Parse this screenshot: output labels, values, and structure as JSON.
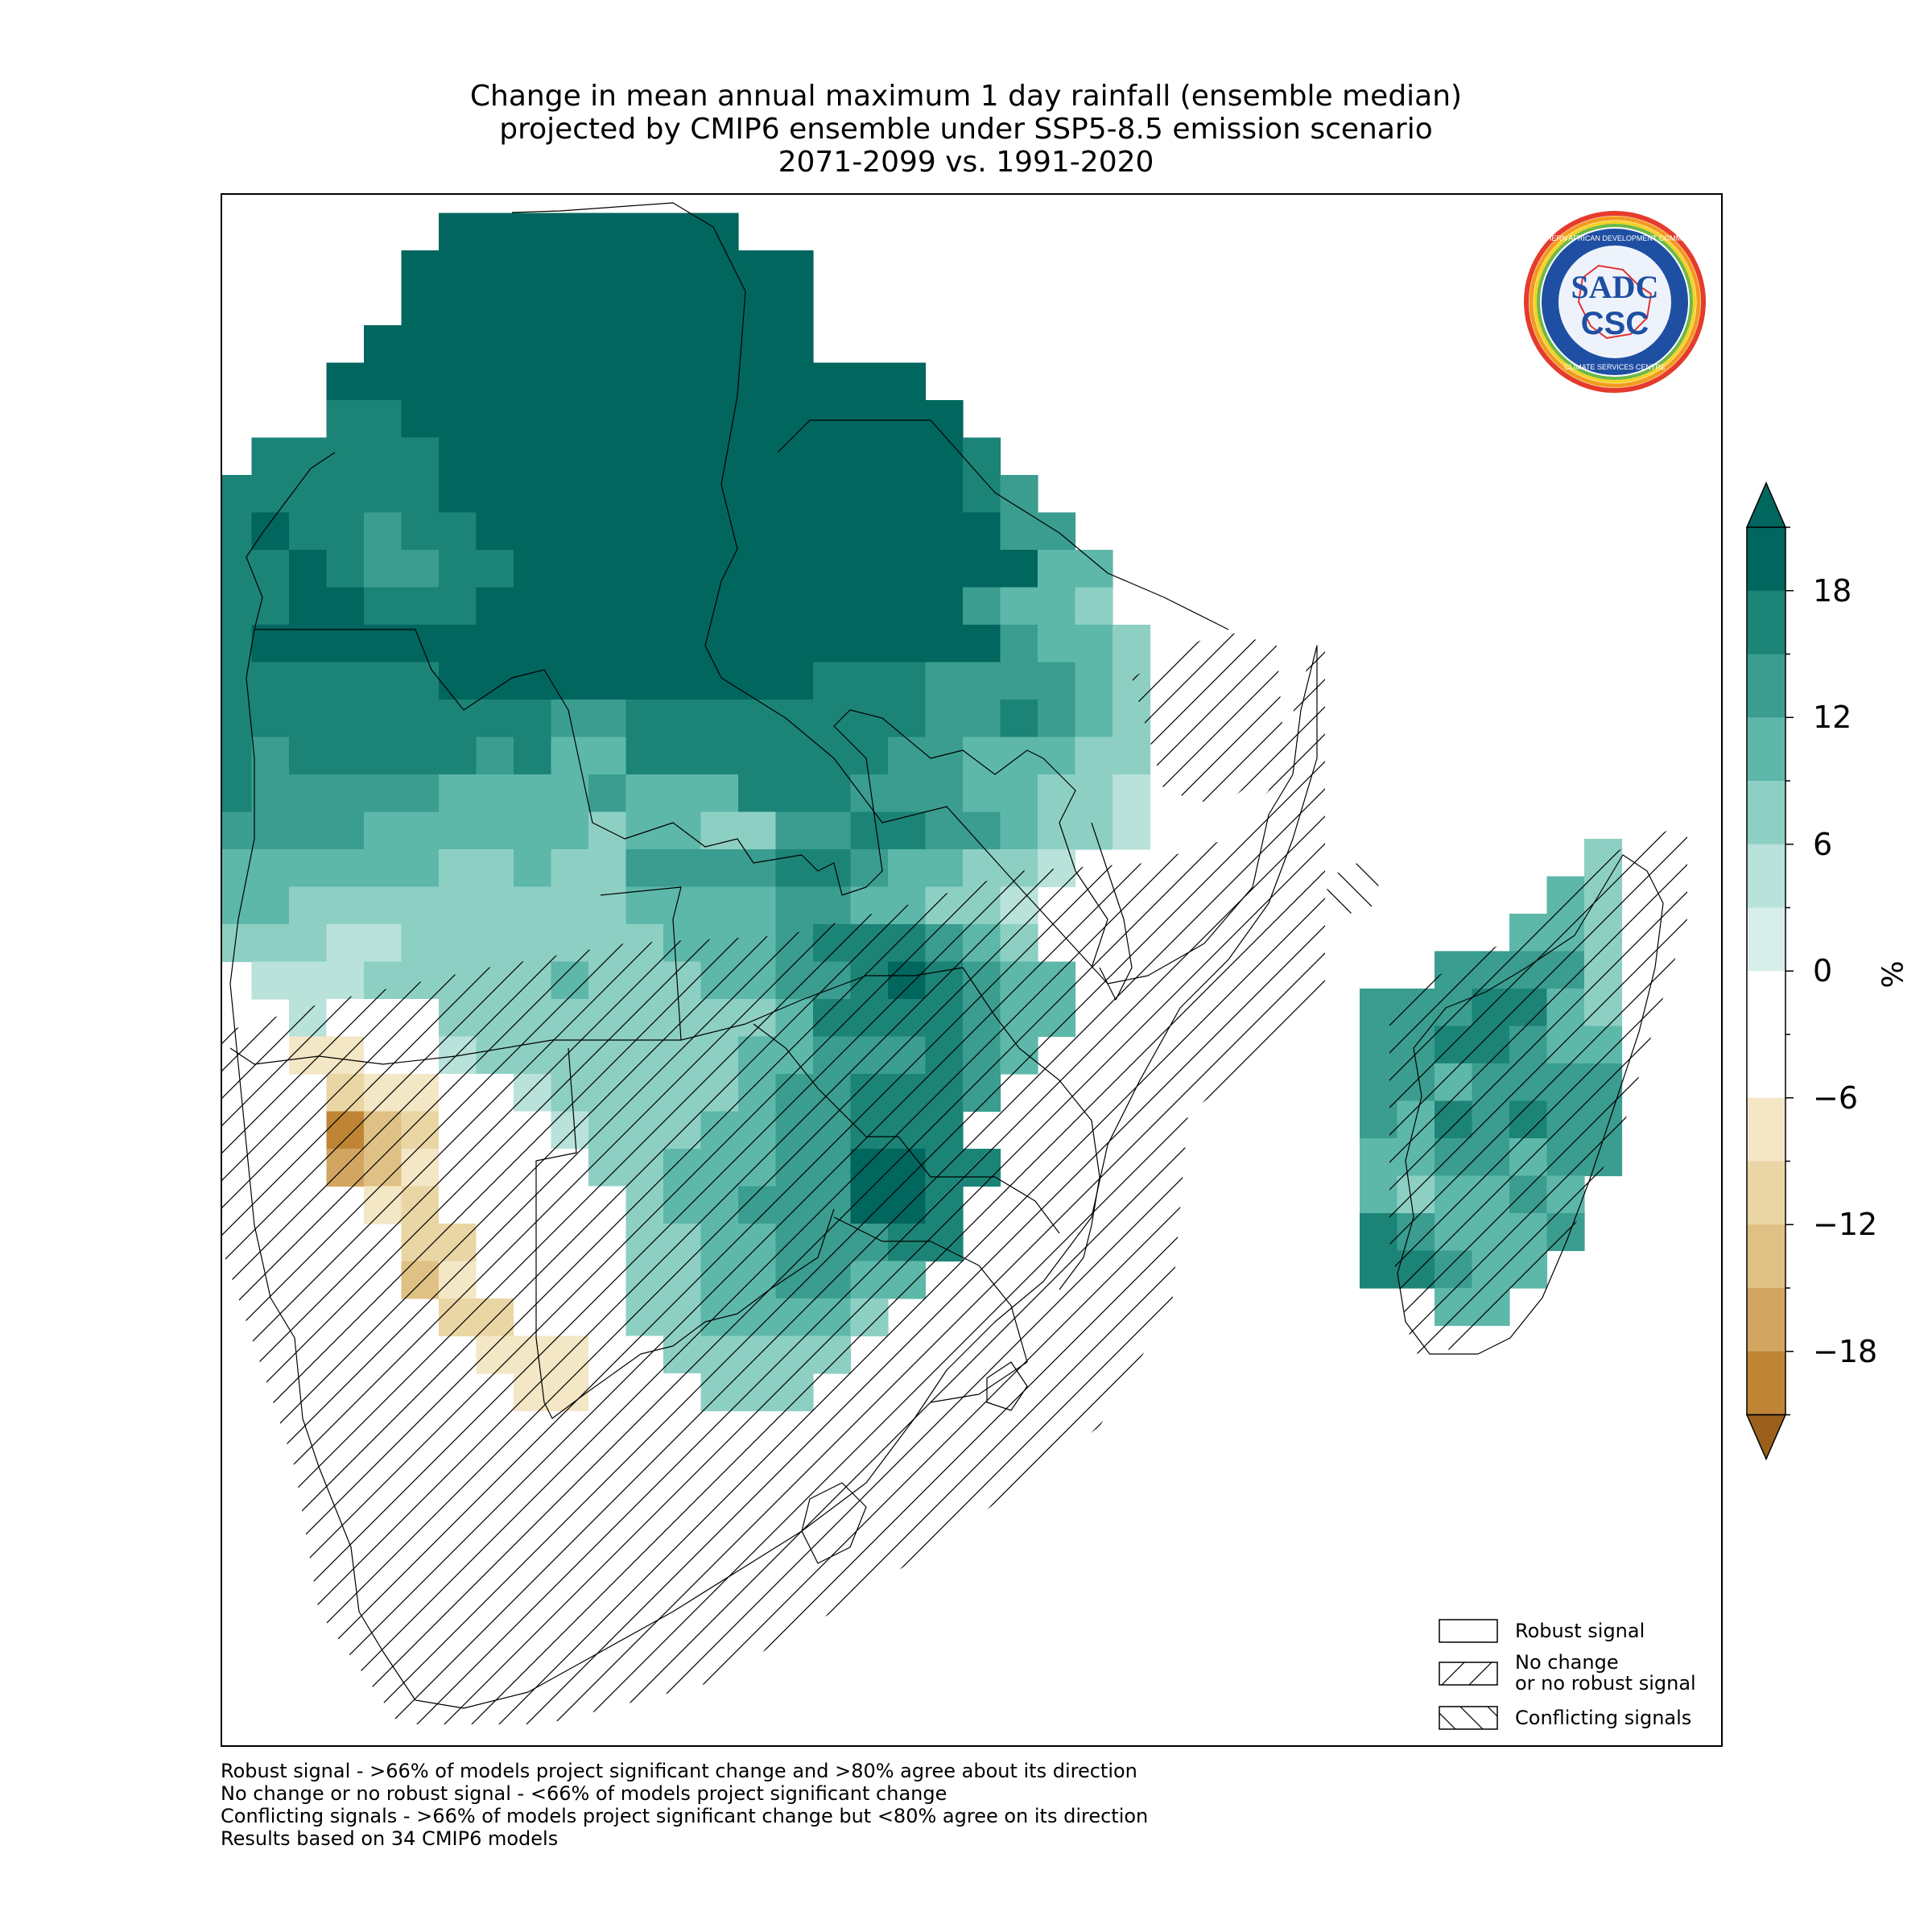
{
  "title": {
    "line1": "Change in mean annual maximum 1 day rainfall (ensemble median)",
    "line2": "projected by CMIP6 ensemble under SSP5-8.5 emission scenario",
    "line3": "2071-2099 vs. 1991-2020"
  },
  "logo": {
    "ring_text_top": "SOUTHERN AFRICAN DEVELOPMENT COMMUNITY",
    "ring_text_bottom": "CLIMATE SERVICES CENTRE",
    "emblem_top": "SADC",
    "emblem_bottom": "CSC"
  },
  "legend": {
    "items": [
      {
        "label": "Robust signal",
        "pattern": "none"
      },
      {
        "label_line1": "No change",
        "label_line2": "or no robust signal",
        "pattern": "forward-hatch"
      },
      {
        "label": "Conflicting signals",
        "pattern": "back-hatch"
      }
    ]
  },
  "colorbar": {
    "unit": "%",
    "ticks": [
      "18",
      "12",
      "6",
      "0",
      "−6",
      "−12",
      "−18"
    ],
    "levels": [
      {
        "range": ">21",
        "color": "#01665e"
      },
      {
        "range": "18 to 21",
        "color": "#01665e"
      },
      {
        "range": "15 to 18",
        "color": "#1b8476"
      },
      {
        "range": "12 to 15",
        "color": "#3a9d8f"
      },
      {
        "range": "9 to 12",
        "color": "#5db8aa"
      },
      {
        "range": "6 to 9",
        "color": "#8dd0c3"
      },
      {
        "range": "3 to 6",
        "color": "#b8e2da"
      },
      {
        "range": "0 to 3",
        "color": "#d8eeea"
      },
      {
        "range": "-3 to 0",
        "color": "#ffffff"
      },
      {
        "range": "-6 to -3",
        "color": "#ffffff"
      },
      {
        "range": "-9 to -6",
        "color": "#f4e7c6"
      },
      {
        "range": "-12 to -9",
        "color": "#ead6a5"
      },
      {
        "range": "-15 to -12",
        "color": "#dfc185"
      },
      {
        "range": "-18 to -15",
        "color": "#d2a561"
      },
      {
        "range": "-21 to -18",
        "color": "#bf8535"
      },
      {
        "range": "<-21",
        "color": "#9a5f1a"
      }
    ]
  },
  "footnotes": [
    "Robust signal - >66% of models project significant change and >80% agree about its direction",
    "No change or no robust signal - <66% of models project significant change",
    "Conflicting signals - >66% of models project significant change but <80% agree on its direction",
    "Results based on 34 CMIP6 models"
  ],
  "map_data": {
    "region": "Southern Africa (SADC)",
    "variable": "mean annual maximum 1 day rainfall change",
    "units": "%",
    "colors": {
      "c21": "#01665e",
      "c18": "#1b8476",
      "c15": "#3a9d8f",
      "c12": "#5db8aa",
      "c9": "#8dd0c3",
      "c6": "#b8e2da",
      "c3": "#d8eeea",
      "c0": "#ffffff",
      "n6": "#f4e7c6",
      "n9": "#ead6a5",
      "n12": "#dfc185",
      "n15": "#d2a561",
      "n18": "#bf8535",
      "n21": "#a8671f"
    },
    "grid_legend": "A=>18 (darkest teal), B=15-18, C=12-15, D=9-12, E=6-9, F=3-6, W=-3 to 3, G=-6 to -3, H=-9 to -6, I=-12 to -9, J=-15 to -12, K=-18 to -15",
    "mainland_rows": [
      "....................",
      "......AAAAAAAA......",
      ".....AAAAAAAAAAA....",
      ".....AAAAAAAAAAA....",
      "....AAAAAAAAAAAA....",
      "...AAAAAAAAAAAAAAAA.",
      "...BBAAAAAAAAAAAAAAA",
      ".BBBBBAAAAAAAAAAAAAAB",
      "BBBBBBAAAAAAAAAAAAAABC",
      "BABBCBBAAAAAAAAAAAAAACC",
      "BBABCCBBAAAAAAAAAAAAAADD",
      "BBAABBBAAAAAAAAAAAAACDDE",
      "BAAAAAAAAAAAAAAAAAAAACDDE",
      "BBBBBBAAAAAAAAAABBBCCCCDE",
      "BBBBBBBBBCCBBBBBBBBCCBCDE",
      "BCBBBBBCBDDBBBBBBBCCDDDEE",
      "BCCCCCDDDDCDDDBBBCCCDDEEF",
      "CCCCDDDDDDEDDEECCBBCCDEEF",
      "DDDDDDEEDEECCCCBBCDDEEF..",
      "DDEEEEEEEEEDDDDCCDDEEF...",
      "EEEFFEEEEEEEDDDCBBBCDE...",
      ".FFFEEEEEDEEEDDCCBABCDD..",
      "..FWWWEEEEEEEEEDBBBBCDD..",
      "..GGWWFEEEEEEEDDCCCBCD...",
      "...HGGWWFEEEEEDCCBBBC....",
      "...KIHWWWFEEEDDCCBBB.....",
      "...JIGWWWWEEDDDCCAABB....",
      "....GHWWWWWEDDCCCAAB.....",
      ".....HHWWWWEEDDCCCBB.....",
      ".....IGWWWWEEDDCCDD......",
      "......HHWWWEEDDDDE.......",
      ".......GGGWWEEEEE........",
      "........GGWWWEEE........."
    ],
    "madagascar_rows": [
      "......E",
      ".....DE",
      "....DDE",
      "..CCCCE",
      "CCCBBDE",
      "CCBBCDD",
      "CCDCCCC",
      "CDBCBCC",
      "DDCCDCC",
      "DEDDCD.",
      "BCDDDC.",
      "BBCDD..",
      "..DD..."
    ]
  }
}
